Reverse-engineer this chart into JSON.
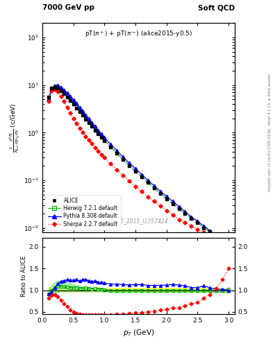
{
  "title_left": "7000 GeV pp",
  "title_right": "Soft QCD",
  "annotation": "pT(π+) + pT(π⁻) (alice2015-y0.5)",
  "watermark": "ALICE_2015_I1357424",
  "side_text": "mcplots.cern.ch [arXiv:1306.3436]",
  "side_text2": "Rivet 3.1.10; ≥ 400k events",
  "xlabel": "p_{T} (GeV)",
  "ylabel_top": "1/N_{tot} d^{2}N/dp_{Td}y (c/GeV)",
  "ratio_ylabel": "Ratio to ALICE",
  "ylim_log": [
    0.008,
    200
  ],
  "xlim": [
    0,
    3.1
  ],
  "ratio_ylim": [
    0.45,
    2.2
  ],
  "ratio_yticks": [
    0.5,
    1.0,
    1.5,
    2.0
  ],
  "alice_pt": [
    0.1,
    0.15,
    0.2,
    0.25,
    0.3,
    0.35,
    0.4,
    0.45,
    0.5,
    0.55,
    0.6,
    0.65,
    0.7,
    0.75,
    0.8,
    0.85,
    0.9,
    0.95,
    1.0,
    1.1,
    1.2,
    1.3,
    1.4,
    1.5,
    1.6,
    1.7,
    1.8,
    1.9,
    2.0,
    2.1,
    2.2,
    2.3,
    2.4,
    2.5,
    2.6,
    2.7,
    2.8,
    2.9,
    3.0
  ],
  "alice_y": [
    5.5,
    8.5,
    9.0,
    8.5,
    7.5,
    6.5,
    5.5,
    4.7,
    4.0,
    3.3,
    2.8,
    2.3,
    1.9,
    1.6,
    1.35,
    1.12,
    0.95,
    0.8,
    0.68,
    0.5,
    0.37,
    0.275,
    0.205,
    0.155,
    0.118,
    0.09,
    0.069,
    0.053,
    0.041,
    0.032,
    0.025,
    0.02,
    0.016,
    0.013,
    0.01,
    0.0083,
    0.0067,
    0.0054,
    0.0044
  ],
  "alice_color": "#000000",
  "herwig_pt": [
    0.1,
    0.15,
    0.2,
    0.25,
    0.3,
    0.35,
    0.4,
    0.45,
    0.5,
    0.55,
    0.6,
    0.65,
    0.7,
    0.75,
    0.8,
    0.85,
    0.9,
    0.95,
    1.0,
    1.1,
    1.2,
    1.3,
    1.4,
    1.5,
    1.6,
    1.7,
    1.8,
    1.9,
    2.0,
    2.1,
    2.2,
    2.3,
    2.4,
    2.5,
    2.6,
    2.7,
    2.8,
    2.9,
    3.0
  ],
  "herwig_y": [
    5.0,
    8.5,
    9.5,
    9.2,
    8.2,
    7.0,
    5.9,
    5.0,
    4.2,
    3.5,
    2.9,
    2.4,
    2.0,
    1.67,
    1.39,
    1.16,
    0.98,
    0.82,
    0.69,
    0.5,
    0.37,
    0.275,
    0.205,
    0.155,
    0.118,
    0.09,
    0.069,
    0.053,
    0.041,
    0.032,
    0.025,
    0.02,
    0.016,
    0.013,
    0.01,
    0.0083,
    0.0067,
    0.0054,
    0.0045
  ],
  "herwig_color": "#00aa00",
  "herwig_band_lo": [
    0.85,
    0.88,
    0.92,
    0.96,
    0.97,
    0.97,
    0.97,
    0.97,
    0.97,
    0.97,
    0.97,
    0.97,
    0.97,
    0.97,
    0.97,
    0.97,
    0.97,
    0.97,
    0.97,
    0.95,
    0.95,
    0.95,
    0.95,
    0.95,
    0.95,
    0.95,
    0.95,
    0.95,
    0.95,
    0.95,
    0.95,
    0.95,
    0.95,
    0.95,
    0.95,
    0.95,
    0.95,
    0.95,
    0.93
  ],
  "herwig_band_hi": [
    1.05,
    1.12,
    1.18,
    1.22,
    1.22,
    1.2,
    1.18,
    1.16,
    1.14,
    1.12,
    1.1,
    1.08,
    1.07,
    1.06,
    1.05,
    1.04,
    1.04,
    1.03,
    1.03,
    1.02,
    1.02,
    1.02,
    1.02,
    1.02,
    1.02,
    1.02,
    1.02,
    1.02,
    1.02,
    1.02,
    1.02,
    1.02,
    1.02,
    1.02,
    1.02,
    1.02,
    1.02,
    1.02,
    1.05
  ],
  "pythia_pt": [
    0.1,
    0.15,
    0.2,
    0.25,
    0.3,
    0.35,
    0.4,
    0.45,
    0.5,
    0.55,
    0.6,
    0.65,
    0.7,
    0.75,
    0.8,
    0.85,
    0.9,
    0.95,
    1.0,
    1.1,
    1.2,
    1.3,
    1.4,
    1.5,
    1.6,
    1.7,
    1.8,
    1.9,
    2.0,
    2.1,
    2.2,
    2.3,
    2.4,
    2.5,
    2.6,
    2.7,
    2.8,
    2.9,
    3.0
  ],
  "pythia_y": [
    5.0,
    8.0,
    9.5,
    9.8,
    9.0,
    7.9,
    6.8,
    5.8,
    4.9,
    4.1,
    3.4,
    2.85,
    2.35,
    1.95,
    1.62,
    1.35,
    1.12,
    0.94,
    0.79,
    0.57,
    0.42,
    0.31,
    0.23,
    0.175,
    0.133,
    0.1,
    0.077,
    0.059,
    0.046,
    0.036,
    0.028,
    0.022,
    0.017,
    0.0138,
    0.011,
    0.0087,
    0.0069,
    0.0055,
    0.0044
  ],
  "pythia_color": "#0000ff",
  "sherpa_pt": [
    0.1,
    0.15,
    0.2,
    0.25,
    0.3,
    0.35,
    0.4,
    0.45,
    0.5,
    0.55,
    0.6,
    0.65,
    0.7,
    0.75,
    0.8,
    0.85,
    0.9,
    0.95,
    1.0,
    1.1,
    1.2,
    1.3,
    1.4,
    1.5,
    1.6,
    1.7,
    1.8,
    1.9,
    2.0,
    2.1,
    2.2,
    2.3,
    2.4,
    2.5,
    2.6,
    2.7,
    2.8,
    2.9,
    3.0
  ],
  "sherpa_y": [
    4.5,
    7.5,
    8.0,
    7.2,
    5.8,
    4.5,
    3.4,
    2.6,
    2.0,
    1.55,
    1.25,
    1.02,
    0.84,
    0.7,
    0.59,
    0.49,
    0.41,
    0.35,
    0.3,
    0.22,
    0.165,
    0.125,
    0.096,
    0.074,
    0.058,
    0.045,
    0.036,
    0.029,
    0.023,
    0.019,
    0.015,
    0.013,
    0.011,
    0.0093,
    0.0082,
    0.0075,
    0.007,
    0.0067,
    0.0066
  ],
  "sherpa_color": "#ff0000",
  "ratio_herwig": [
    0.91,
    1.0,
    1.06,
    1.08,
    1.09,
    1.08,
    1.07,
    1.06,
    1.05,
    1.06,
    1.04,
    1.04,
    1.05,
    1.04,
    1.03,
    1.04,
    1.03,
    1.03,
    1.01,
    1.0,
    1.0,
    1.0,
    1.0,
    1.0,
    1.0,
    1.0,
    1.0,
    1.0,
    1.0,
    1.0,
    1.0,
    1.0,
    1.0,
    1.0,
    1.0,
    1.0,
    1.0,
    1.0,
    1.02
  ],
  "ratio_pythia": [
    0.91,
    0.94,
    1.06,
    1.15,
    1.2,
    1.22,
    1.24,
    1.23,
    1.23,
    1.24,
    1.21,
    1.24,
    1.24,
    1.22,
    1.2,
    1.21,
    1.18,
    1.18,
    1.16,
    1.14,
    1.14,
    1.13,
    1.12,
    1.13,
    1.13,
    1.11,
    1.11,
    1.11,
    1.12,
    1.13,
    1.12,
    1.1,
    1.06,
    1.06,
    1.1,
    1.05,
    1.03,
    1.02,
    1.0
  ],
  "ratio_sherpa": [
    0.82,
    0.88,
    0.89,
    0.85,
    0.77,
    0.69,
    0.62,
    0.55,
    0.5,
    0.47,
    0.45,
    0.44,
    0.44,
    0.44,
    0.44,
    0.44,
    0.43,
    0.44,
    0.44,
    0.44,
    0.45,
    0.45,
    0.47,
    0.48,
    0.49,
    0.5,
    0.52,
    0.55,
    0.56,
    0.59,
    0.6,
    0.65,
    0.69,
    0.72,
    0.82,
    0.9,
    1.04,
    1.24,
    1.5
  ],
  "alice_err_lo": [
    0.93,
    0.95,
    0.96,
    0.97,
    0.97,
    0.97,
    0.97,
    0.97,
    0.97,
    0.97,
    0.97,
    0.97,
    0.97,
    0.97,
    0.97,
    0.97,
    0.97,
    0.97,
    0.97,
    0.96,
    0.96,
    0.96,
    0.96,
    0.96,
    0.96,
    0.96,
    0.96,
    0.96,
    0.96,
    0.96,
    0.96,
    0.96,
    0.96,
    0.96,
    0.96,
    0.96,
    0.96,
    0.96,
    0.96
  ],
  "alice_err_hi": [
    1.07,
    1.05,
    1.04,
    1.03,
    1.03,
    1.03,
    1.03,
    1.03,
    1.03,
    1.03,
    1.03,
    1.03,
    1.03,
    1.03,
    1.03,
    1.03,
    1.03,
    1.03,
    1.03,
    1.04,
    1.04,
    1.04,
    1.04,
    1.04,
    1.04,
    1.04,
    1.04,
    1.04,
    1.04,
    1.04,
    1.04,
    1.04,
    1.04,
    1.04,
    1.04,
    1.04,
    1.04,
    1.04,
    1.04
  ]
}
